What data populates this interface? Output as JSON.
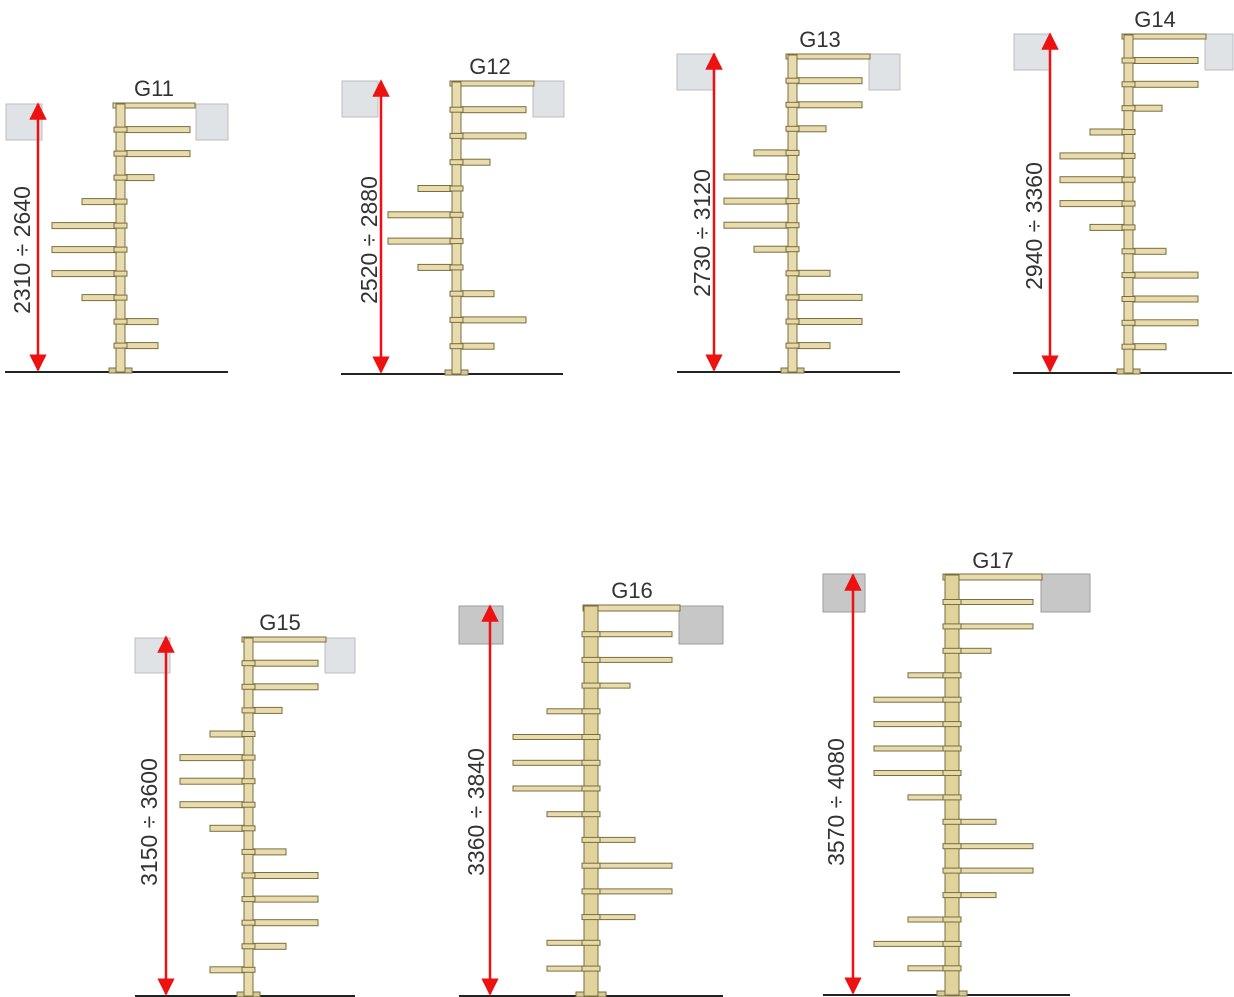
{
  "diagrams": [
    {
      "model": "G11",
      "height_range": "2310 ÷ 2640",
      "steps": [
        "R",
        "R",
        "R",
        "L",
        "L",
        "L",
        "L",
        "L",
        "R",
        "R"
      ]
    },
    {
      "model": "G12",
      "height_range": "2520 ÷ 2880",
      "steps": [
        "R",
        "R",
        "R",
        "L",
        "L",
        "L",
        "L",
        "R",
        "R",
        "R"
      ]
    },
    {
      "model": "G13",
      "height_range": "2730 ÷ 3120",
      "steps": [
        "R",
        "R",
        "R",
        "L",
        "L",
        "L",
        "L",
        "L",
        "R",
        "R",
        "R",
        "R"
      ]
    },
    {
      "model": "G14",
      "height_range": "2940 ÷ 3360",
      "steps": [
        "R",
        "R",
        "R",
        "L",
        "L",
        "L",
        "L",
        "L",
        "R",
        "R",
        "R",
        "R",
        "R"
      ]
    },
    {
      "model": "G15",
      "height_range": "3150 ÷ 3600",
      "steps": [
        "R",
        "R",
        "R",
        "L",
        "L",
        "L",
        "L",
        "L",
        "R",
        "R",
        "R",
        "R",
        "R",
        "L"
      ]
    },
    {
      "model": "G16",
      "height_range": "3360 ÷ 3840",
      "steps": [
        "R",
        "R",
        "R",
        "L",
        "L",
        "L",
        "L",
        "L",
        "R",
        "R",
        "R",
        "R",
        "L",
        "L"
      ]
    },
    {
      "model": "G17",
      "height_range": "3570 ÷ 4080",
      "steps": [
        "R",
        "R",
        "R",
        "L",
        "L",
        "L",
        "L",
        "L",
        "L",
        "R",
        "R",
        "R",
        "R",
        "L",
        "L",
        "L"
      ]
    }
  ],
  "colors": {
    "pole": "#e8dcae",
    "pole_outline": "#7a6d3e",
    "arrow": "#ee1111",
    "floor": "#222222",
    "slab": "#dfe3e6",
    "slab_dark": "#c7c7c7"
  }
}
